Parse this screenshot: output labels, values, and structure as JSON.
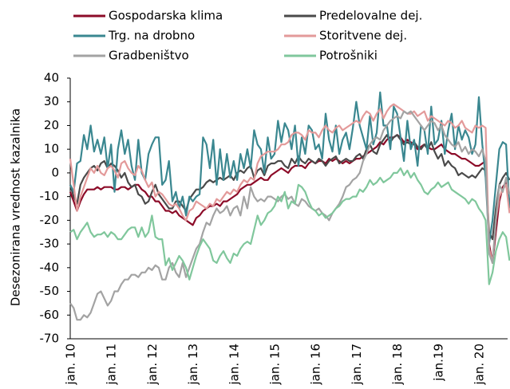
{
  "chart_data": {
    "type": "line",
    "y_label": "Desezonirana vrednost kazalnika",
    "categories": [
      "jan. 10",
      null,
      null,
      null,
      null,
      null,
      null,
      null,
      null,
      null,
      null,
      null,
      "jan. 11",
      null,
      null,
      null,
      null,
      null,
      null,
      null,
      null,
      null,
      null,
      null,
      "jan. 12",
      null,
      null,
      null,
      null,
      null,
      null,
      null,
      null,
      null,
      null,
      null,
      "jan. 13",
      null,
      null,
      null,
      null,
      null,
      null,
      null,
      null,
      null,
      null,
      null,
      "jan. 14",
      null,
      null,
      null,
      null,
      null,
      null,
      null,
      null,
      null,
      null,
      null,
      "jan. 15",
      null,
      null,
      null,
      null,
      null,
      null,
      null,
      null,
      null,
      null,
      null,
      "jan. 16",
      null,
      null,
      null,
      null,
      null,
      null,
      null,
      null,
      null,
      null,
      null,
      "jan. 17",
      null,
      null,
      null,
      null,
      null,
      null,
      null,
      null,
      null,
      null,
      null,
      "jan. 18",
      null,
      null,
      null,
      null,
      null,
      null,
      null,
      null,
      null,
      null,
      null,
      "jan.19",
      null,
      null,
      null,
      null,
      null,
      null,
      null,
      null,
      null,
      null,
      null,
      "jan. 20",
      null,
      null,
      null,
      null,
      null,
      null,
      null,
      null,
      null
    ],
    "ylim": [
      -70,
      40
    ],
    "yticks": [
      40,
      30,
      20,
      10,
      0,
      -10,
      -20,
      -30,
      -40,
      -50,
      -60,
      -70
    ],
    "series": [
      {
        "name": "Gospodarska klima",
        "color": "#8c0b28",
        "values": [
          -8,
          -12,
          -16,
          -12,
          -9,
          -7,
          -7,
          -7,
          -6,
          -7,
          -6,
          -6,
          -6,
          -7,
          -7,
          -6,
          -6,
          -7,
          -6,
          -5,
          -5,
          -7,
          -8,
          -10,
          -10,
          -12,
          -12,
          -14,
          -16,
          -16,
          -17,
          -16,
          -18,
          -19,
          -20,
          -21,
          -22,
          -19,
          -18,
          -16,
          -15,
          -14,
          -14,
          -13,
          -14,
          -12,
          -12,
          -11,
          -10,
          -9,
          -7,
          -6,
          -5,
          -5,
          -4,
          -3,
          -2,
          -3,
          -3,
          -1,
          0,
          1,
          2,
          1,
          0,
          2,
          3,
          3,
          3,
          2,
          4,
          5,
          4,
          5,
          5,
          4,
          6,
          5,
          6,
          5,
          4,
          5,
          4,
          5,
          6,
          6,
          7,
          8,
          9,
          10,
          11,
          13,
          12,
          14,
          15,
          15,
          16,
          15,
          13,
          14,
          13,
          12,
          10,
          11,
          12,
          11,
          10,
          10,
          11,
          12,
          10,
          9,
          8,
          8,
          7,
          6,
          6,
          5,
          4,
          3,
          3,
          4,
          5,
          -30,
          -38,
          -25,
          -12,
          -6,
          -4,
          -12
        ]
      },
      {
        "name": "Predelovalne dej.",
        "color": "#4a4a4a",
        "values": [
          -5,
          -10,
          -13,
          -5,
          -2,
          0,
          2,
          3,
          1,
          4,
          5,
          2,
          4,
          3,
          1,
          -2,
          0,
          -4,
          -6,
          -5,
          -9,
          -10,
          -13,
          -12,
          -8,
          -5,
          -9,
          -11,
          -13,
          -15,
          -15,
          -12,
          -12,
          -14,
          -16,
          -11,
          -9,
          -7,
          -7,
          -6,
          -4,
          -3,
          -4,
          -3,
          -2,
          -3,
          -2,
          -1,
          -3,
          0,
          1,
          0,
          2,
          3,
          -2,
          1,
          2,
          -1,
          3,
          4,
          4,
          5,
          5,
          3,
          2,
          6,
          4,
          7,
          5,
          4,
          6,
          5,
          4,
          6,
          5,
          3,
          5,
          6,
          7,
          4,
          5,
          6,
          5,
          5,
          7,
          8,
          6,
          10,
          12,
          9,
          8,
          12,
          14,
          16,
          13,
          15,
          16,
          14,
          12,
          13,
          12,
          13,
          11,
          10,
          12,
          10,
          13,
          9,
          6,
          8,
          3,
          5,
          3,
          2,
          -1,
          0,
          -1,
          -2,
          -1,
          -2,
          0,
          2,
          1,
          -25,
          -28,
          -15,
          -5,
          -2,
          0,
          -3
        ]
      },
      {
        "name": "Trg. na drobno",
        "color": "#3a8790",
        "values": [
          -5,
          -8,
          4,
          5,
          16,
          10,
          20,
          9,
          14,
          8,
          15,
          2,
          12,
          -8,
          10,
          18,
          8,
          14,
          3,
          -3,
          14,
          0,
          -3,
          8,
          12,
          15,
          15,
          -5,
          -3,
          5,
          -12,
          -8,
          -15,
          -10,
          -18,
          -10,
          -12,
          -10,
          -9,
          15,
          12,
          2,
          14,
          -5,
          10,
          -3,
          8,
          -2,
          5,
          -3,
          8,
          2,
          10,
          2,
          18,
          12,
          10,
          0,
          15,
          6,
          8,
          22,
          13,
          21,
          18,
          10,
          20,
          3,
          15,
          8,
          20,
          18,
          10,
          12,
          6,
          25,
          14,
          9,
          20,
          8,
          14,
          17,
          10,
          19,
          30,
          20,
          15,
          10,
          24,
          12,
          17,
          34,
          20,
          20,
          10,
          28,
          25,
          15,
          5,
          22,
          10,
          14,
          3,
          20,
          18,
          8,
          28,
          12,
          14,
          22,
          8,
          18,
          25,
          10,
          20,
          14,
          18,
          15,
          8,
          12,
          32,
          12,
          -2,
          -30,
          -20,
          -5,
          10,
          13,
          12,
          -15
        ]
      },
      {
        "name": "Storitvene dej.",
        "color": "#e39a9a",
        "values": [
          6,
          -5,
          -16,
          -10,
          -6,
          -2,
          2,
          0,
          3,
          0,
          -1,
          2,
          3,
          1,
          -2,
          4,
          5,
          2,
          0,
          -1,
          3,
          1,
          -3,
          -6,
          -4,
          -10,
          -8,
          -9,
          -11,
          -13,
          -14,
          -13,
          -15,
          -18,
          -20,
          -16,
          -15,
          -12,
          -13,
          -14,
          -15,
          -13,
          -14,
          -11,
          -12,
          -10,
          -8,
          -9,
          -7,
          -8,
          -5,
          -3,
          -4,
          -2,
          -3,
          4,
          7,
          8,
          9,
          9,
          9,
          10,
          12,
          12,
          13,
          16,
          17,
          17,
          16,
          14,
          18,
          17,
          17,
          15,
          18,
          20,
          18,
          17,
          19,
          20,
          18,
          19,
          20,
          21,
          22,
          21,
          24,
          26,
          25,
          22,
          25,
          27,
          23,
          26,
          28,
          29,
          28,
          27,
          26,
          25,
          25,
          26,
          24,
          25,
          26,
          22,
          24,
          23,
          22,
          21,
          20,
          22,
          21,
          19,
          20,
          22,
          19,
          18,
          17,
          20,
          19,
          20,
          19,
          -32,
          -38,
          -20,
          -10,
          -7,
          -5,
          -17
        ]
      },
      {
        "name": "Gradbeništvo",
        "color": "#a3a3a3",
        "values": [
          -55,
          -57,
          -62,
          -62,
          -60,
          -61,
          -59,
          -55,
          -51,
          -50,
          -53,
          -56,
          -54,
          -50,
          -50,
          -47,
          -45,
          -45,
          -43,
          -43,
          -44,
          -42,
          -42,
          -40,
          -41,
          -39,
          -40,
          -45,
          -45,
          -40,
          -38,
          -42,
          -44,
          -38,
          -44,
          -40,
          -36,
          -32,
          -30,
          -25,
          -21,
          -22,
          -18,
          -15,
          -17,
          -16,
          -14,
          -18,
          -15,
          -14,
          -18,
          -10,
          -15,
          -6,
          -10,
          -12,
          -11,
          -12,
          -10,
          -10,
          -11,
          -12,
          -10,
          -9,
          -11,
          -10,
          -13,
          -14,
          -11,
          -12,
          -14,
          -15,
          -16,
          -15,
          -17,
          -18,
          -20,
          -17,
          -15,
          -13,
          -10,
          -6,
          -5,
          -3,
          -2,
          0,
          5,
          8,
          12,
          14,
          15,
          14,
          18,
          20,
          22,
          23,
          24,
          23,
          26,
          25,
          26,
          24,
          22,
          20,
          18,
          20,
          22,
          21,
          18,
          20,
          16,
          14,
          12,
          11,
          13,
          9,
          11,
          8,
          10,
          9,
          7,
          10,
          5,
          -34,
          -38,
          -20,
          -5,
          -8,
          -2,
          -9
        ]
      },
      {
        "name": "Potrošniki",
        "color": "#80c79c",
        "values": [
          -25,
          -24,
          -28,
          -25,
          -23,
          -21,
          -25,
          -27,
          -26,
          -26,
          -25,
          -27,
          -25,
          -26,
          -28,
          -28,
          -26,
          -24,
          -23,
          -23,
          -27,
          -23,
          -27,
          -25,
          -18,
          -27,
          -28,
          -28,
          -39,
          -36,
          -41,
          -38,
          -35,
          -37,
          -40,
          -45,
          -40,
          -35,
          -31,
          -28,
          -30,
          -32,
          -37,
          -38,
          -35,
          -33,
          -36,
          -38,
          -34,
          -35,
          -32,
          -30,
          -29,
          -30,
          -24,
          -18,
          -22,
          -20,
          -17,
          -16,
          -14,
          -10,
          -12,
          -8,
          -15,
          -12,
          -13,
          -5,
          -6,
          -8,
          -12,
          -15,
          -16,
          -18,
          -17,
          -19,
          -18,
          -17,
          -15,
          -14,
          -12,
          -11,
          -11,
          -10,
          -10,
          -7,
          -8,
          -6,
          -3,
          -5,
          -4,
          -2,
          -4,
          -3,
          -2,
          0,
          0,
          2,
          -1,
          1,
          -2,
          0,
          -3,
          -5,
          -8,
          -9,
          -7,
          -6,
          -4,
          -6,
          -5,
          -4,
          -7,
          -8,
          -9,
          -10,
          -11,
          -13,
          -11,
          -12,
          -15,
          -17,
          -20,
          -47,
          -42,
          -33,
          -28,
          -25,
          -27,
          -37
        ]
      }
    ]
  }
}
